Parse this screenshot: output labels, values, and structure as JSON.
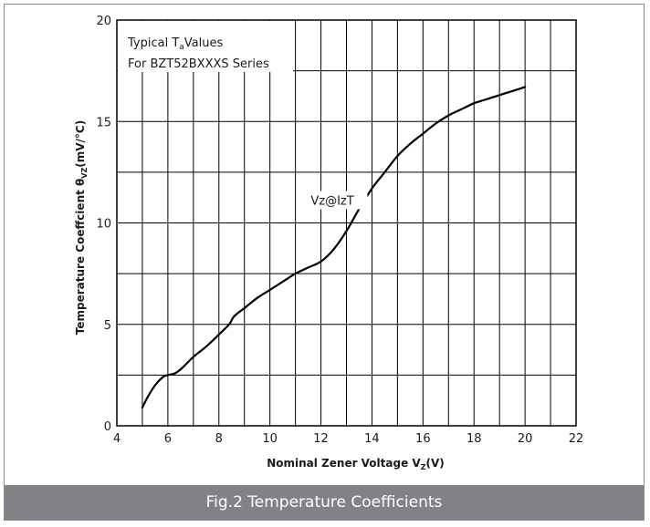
{
  "caption": "Fig.2 Temperature Coefficients",
  "chart_data": {
    "type": "line",
    "xlabel_main": "Nominal Zener Voltage  V",
    "xlabel_sub": "Z",
    "xlabel_tail": "(V)",
    "ylabel_main": "Temperature Coeffcient  θ",
    "ylabel_sub": "VZ",
    "ylabel_tail": "(mV/°C)",
    "xlim": [
      4,
      22
    ],
    "ylim": [
      0,
      20
    ],
    "x_ticks": [
      4,
      6,
      8,
      10,
      12,
      14,
      16,
      18,
      20,
      22
    ],
    "y_ticks": [
      0,
      5,
      10,
      15,
      20
    ],
    "x_grid_step": 1,
    "y_grid_step": 2.5,
    "legend_line1_pre": "Typical T",
    "legend_line1_sub": "a",
    "legend_line1_post": "Values",
    "legend_line2": "For BZT52BXXXS Series",
    "annotation": "Vz@IzT",
    "series": [
      {
        "x": [
          5.0,
          5.2,
          5.5,
          5.8,
          6.0,
          6.3,
          6.6,
          7.0,
          7.5,
          8.0,
          8.4,
          8.6,
          9.0,
          9.5,
          10.0,
          10.5,
          11.0,
          11.5,
          12.0,
          12.5,
          13.0,
          13.5,
          14.0,
          14.5,
          15.0,
          15.5,
          16.0,
          16.5,
          17.0,
          17.5,
          18.0,
          18.5,
          19.0,
          19.5,
          20.0
        ],
        "y": [
          0.9,
          1.4,
          2.0,
          2.4,
          2.5,
          2.6,
          2.9,
          3.4,
          3.9,
          4.5,
          5.0,
          5.4,
          5.8,
          6.3,
          6.7,
          7.1,
          7.5,
          7.8,
          8.1,
          8.7,
          9.6,
          10.7,
          11.7,
          12.5,
          13.3,
          13.9,
          14.4,
          14.9,
          15.3,
          15.6,
          15.9,
          16.1,
          16.3,
          16.5,
          16.7
        ]
      }
    ]
  }
}
